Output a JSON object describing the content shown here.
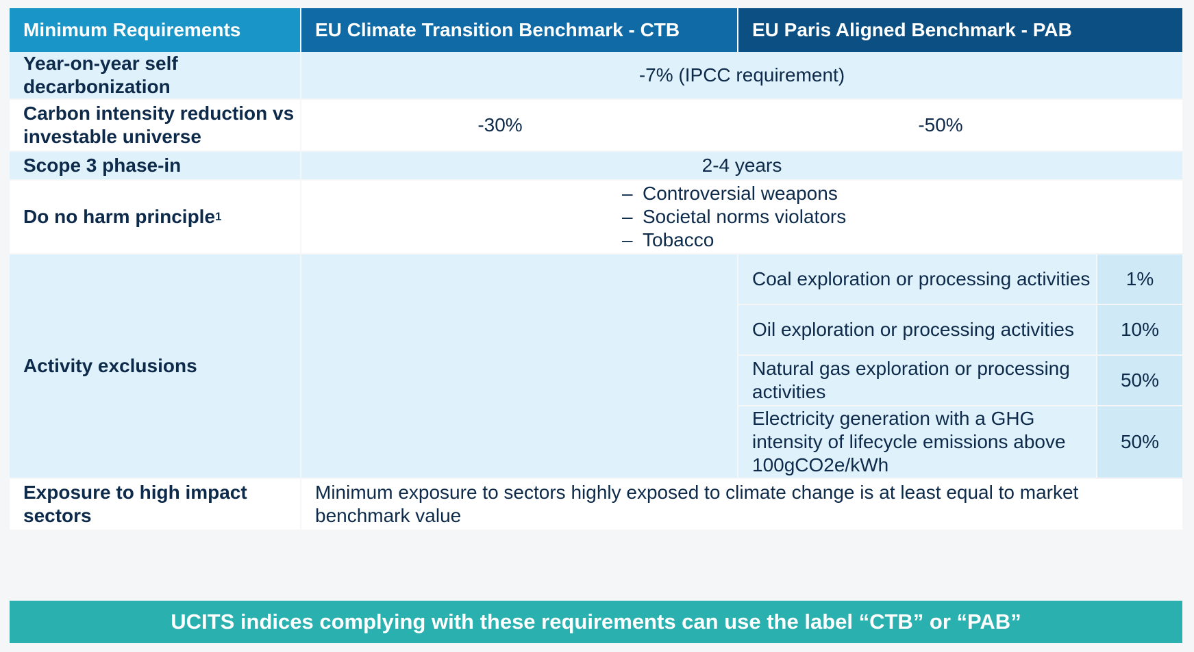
{
  "header": {
    "col1": "Minimum Requirements",
    "col2": "EU Climate Transition Benchmark - CTB",
    "col3": "EU Paris Aligned Benchmark - PAB"
  },
  "rows": {
    "decarbonization": {
      "label": "Year-on-year self decarbonization",
      "value": "-7% (IPCC requirement)"
    },
    "carbon_intensity": {
      "label": "Carbon intensity reduction vs investable universe",
      "ctb": "-30%",
      "pab": "-50%"
    },
    "scope3": {
      "label": "Scope 3 phase-in",
      "value": "2-4 years"
    },
    "do_no_harm": {
      "label": "Do no harm principle",
      "footnote": "1",
      "items": [
        "Controversial weapons",
        "Societal norms violators",
        "Tobacco"
      ]
    },
    "activity_exclusions": {
      "label": "Activity exclusions",
      "items": [
        {
          "activity": "Coal exploration or processing activities",
          "threshold": "1%"
        },
        {
          "activity": "Oil exploration or processing activities",
          "threshold": "10%"
        },
        {
          "activity": "Natural gas exploration or processing activities",
          "threshold": "50%"
        },
        {
          "activity": "Electricity generation with a GHG intensity of lifecycle emissions above 100gCO2e/kWh",
          "threshold": "50%"
        }
      ]
    },
    "high_impact": {
      "label": "Exposure to high impact sectors",
      "value": "Minimum exposure to sectors highly exposed to climate change is at least equal to market benchmark value"
    }
  },
  "banner": "UCITS indices complying with these requirements can use the label “CTB” or “PAB”"
}
